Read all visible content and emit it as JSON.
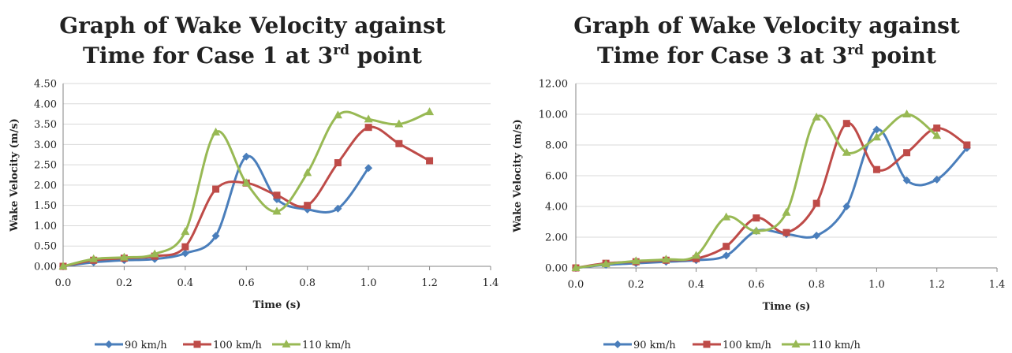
{
  "chart_data": [
    {
      "type": "line",
      "title_lines": [
        "Graph of Wake Velocity against",
        "Time for Case 1 at 3",
        "rd",
        " point"
      ],
      "xlabel": "Time (s)",
      "ylabel": "Wake Velocity (m/s)",
      "xlim": [
        0,
        1.4
      ],
      "ylim": [
        0,
        4.5
      ],
      "xticks": [
        "0.0",
        "0.2",
        "0.4",
        "0.6",
        "0.8",
        "1.0",
        "1.2",
        "1.4"
      ],
      "yticks": [
        "0.00",
        "0.50",
        "1.00",
        "1.50",
        "2.00",
        "2.50",
        "3.00",
        "3.50",
        "4.00",
        "4.50"
      ],
      "grid": true,
      "legend_position": "bottom",
      "series": [
        {
          "name": "90 km/h",
          "color": "#4a7ebb",
          "marker": "diamond",
          "x": [
            0,
            0.1,
            0.2,
            0.3,
            0.4,
            0.5,
            0.6,
            0.7,
            0.8,
            0.9,
            1.0
          ],
          "y": [
            0.0,
            0.1,
            0.15,
            0.18,
            0.32,
            0.75,
            2.7,
            1.65,
            1.4,
            1.42,
            2.42
          ]
        },
        {
          "name": "100 km/h",
          "color": "#be4b48",
          "marker": "square",
          "x": [
            0,
            0.1,
            0.2,
            0.3,
            0.4,
            0.5,
            0.6,
            0.7,
            0.8,
            0.9,
            1.0,
            1.1,
            1.2
          ],
          "y": [
            0.0,
            0.15,
            0.2,
            0.25,
            0.48,
            1.9,
            2.05,
            1.75,
            1.5,
            2.55,
            3.42,
            3.02,
            2.6
          ]
        },
        {
          "name": "110 km/h",
          "color": "#98b954",
          "marker": "triangle",
          "x": [
            0,
            0.1,
            0.2,
            0.3,
            0.4,
            0.5,
            0.6,
            0.7,
            0.8,
            0.9,
            1.0,
            1.1,
            1.2
          ],
          "y": [
            0.0,
            0.18,
            0.22,
            0.3,
            0.85,
            3.3,
            2.05,
            1.35,
            2.3,
            3.72,
            3.62,
            3.5,
            3.8
          ]
        }
      ]
    },
    {
      "type": "line",
      "title_lines": [
        "Graph of Wake Velocity against",
        "Time for Case 3 at 3",
        "rd",
        " point"
      ],
      "xlabel": "Time (s)",
      "ylabel": "Wake Velocity (m/s)",
      "xlim": [
        0,
        1.4
      ],
      "ylim": [
        0,
        12
      ],
      "xticks": [
        "0.0",
        "0.2",
        "0.4",
        "0.6",
        "0.8",
        "1.0",
        "1.2",
        "1.4"
      ],
      "yticks": [
        "0.00",
        "2.00",
        "4.00",
        "6.00",
        "8.00",
        "10.00",
        "12.00"
      ],
      "grid": true,
      "legend_position": "bottom",
      "series": [
        {
          "name": "90 km/h",
          "color": "#4a7ebb",
          "marker": "diamond",
          "x": [
            0,
            0.1,
            0.2,
            0.3,
            0.4,
            0.5,
            0.6,
            0.7,
            0.8,
            0.9,
            1.0,
            1.1,
            1.2,
            1.3
          ],
          "y": [
            0.0,
            0.2,
            0.3,
            0.4,
            0.5,
            0.8,
            2.4,
            2.2,
            2.1,
            4.0,
            9.0,
            5.7,
            5.75,
            7.8
          ]
        },
        {
          "name": "100 km/h",
          "color": "#be4b48",
          "marker": "square",
          "x": [
            0,
            0.1,
            0.2,
            0.3,
            0.4,
            0.5,
            0.6,
            0.7,
            0.8,
            0.9,
            1.0,
            1.1,
            1.2,
            1.3
          ],
          "y": [
            0.0,
            0.3,
            0.4,
            0.5,
            0.6,
            1.4,
            3.25,
            2.3,
            4.2,
            9.4,
            6.4,
            7.5,
            9.1,
            8.0
          ]
        },
        {
          "name": "110 km/h",
          "color": "#98b954",
          "marker": "triangle",
          "x": [
            0,
            0.1,
            0.2,
            0.3,
            0.4,
            0.5,
            0.6,
            0.7,
            0.8,
            0.9,
            1.0,
            1.1,
            1.2
          ],
          "y": [
            0.0,
            0.25,
            0.45,
            0.55,
            0.8,
            3.3,
            2.4,
            3.6,
            9.8,
            7.5,
            8.5,
            10.0,
            8.6
          ]
        }
      ]
    }
  ]
}
